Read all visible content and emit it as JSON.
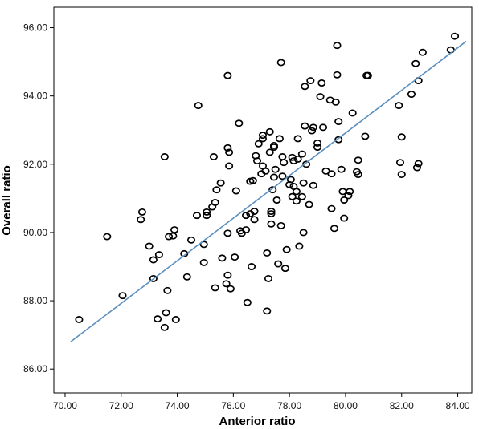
{
  "chart_data": {
    "type": "scatter",
    "title": "",
    "xlabel": "Anterior ratio",
    "ylabel": "Overall ratio",
    "xlim": [
      69.6,
      84.5
    ],
    "ylim": [
      85.3,
      96.6
    ],
    "xticks": [
      "70.00",
      "72.00",
      "74.00",
      "76.00",
      "78.00",
      "80.00",
      "82.00",
      "84.00"
    ],
    "yticks": [
      "86.00",
      "88.00",
      "90.00",
      "92.00",
      "94.00",
      "96.00"
    ],
    "grid": false,
    "marker_color": "#000000",
    "fit_line_color": "#5b8fbe",
    "fit_line": {
      "x": [
        70.2,
        84.3
      ],
      "y": [
        86.8,
        95.6
      ]
    },
    "points": [
      [
        70.5,
        87.45
      ],
      [
        71.5,
        89.88
      ],
      [
        72.05,
        88.15
      ],
      [
        72.75,
        90.6
      ],
      [
        72.7,
        90.38
      ],
      [
        73.0,
        89.6
      ],
      [
        73.15,
        89.2
      ],
      [
        73.15,
        88.65
      ],
      [
        73.3,
        87.47
      ],
      [
        73.35,
        89.35
      ],
      [
        73.55,
        92.22
      ],
      [
        73.55,
        87.22
      ],
      [
        73.6,
        87.65
      ],
      [
        73.65,
        88.3
      ],
      [
        73.7,
        89.88
      ],
      [
        73.85,
        89.9
      ],
      [
        73.9,
        90.08
      ],
      [
        73.95,
        87.45
      ],
      [
        74.25,
        89.38
      ],
      [
        74.35,
        88.7
      ],
      [
        74.5,
        89.78
      ],
      [
        74.7,
        90.5
      ],
      [
        74.75,
        93.72
      ],
      [
        74.95,
        89.12
      ],
      [
        74.95,
        89.65
      ],
      [
        75.05,
        90.6
      ],
      [
        75.05,
        90.5
      ],
      [
        75.25,
        90.75
      ],
      [
        75.3,
        92.22
      ],
      [
        75.35,
        88.38
      ],
      [
        75.35,
        90.88
      ],
      [
        75.4,
        91.25
      ],
      [
        75.55,
        91.45
      ],
      [
        75.6,
        89.25
      ],
      [
        75.75,
        88.5
      ],
      [
        75.8,
        88.75
      ],
      [
        75.8,
        89.98
      ],
      [
        75.8,
        92.48
      ],
      [
        75.85,
        92.35
      ],
      [
        75.8,
        94.6
      ],
      [
        75.85,
        91.95
      ],
      [
        75.9,
        88.35
      ],
      [
        76.05,
        89.28
      ],
      [
        76.1,
        91.22
      ],
      [
        76.2,
        93.2
      ],
      [
        76.25,
        90.05
      ],
      [
        76.3,
        89.98
      ],
      [
        76.45,
        90.5
      ],
      [
        76.45,
        90.08
      ],
      [
        76.5,
        87.95
      ],
      [
        76.6,
        91.5
      ],
      [
        76.6,
        90.55
      ],
      [
        76.65,
        89.0
      ],
      [
        76.7,
        91.52
      ],
      [
        76.75,
        90.62
      ],
      [
        76.75,
        90.38
      ],
      [
        76.8,
        92.25
      ],
      [
        76.85,
        92.1
      ],
      [
        76.9,
        92.6
      ],
      [
        77.0,
        91.72
      ],
      [
        77.05,
        92.75
      ],
      [
        77.05,
        92.85
      ],
      [
        77.05,
        91.95
      ],
      [
        77.15,
        91.8
      ],
      [
        77.2,
        89.4
      ],
      [
        77.25,
        88.65
      ],
      [
        77.2,
        87.7
      ],
      [
        77.3,
        92.35
      ],
      [
        77.3,
        92.95
      ],
      [
        77.35,
        90.55
      ],
      [
        77.35,
        90.62
      ],
      [
        77.35,
        90.25
      ],
      [
        77.4,
        91.25
      ],
      [
        77.45,
        92.55
      ],
      [
        77.45,
        92.5
      ],
      [
        77.45,
        91.62
      ],
      [
        77.5,
        91.85
      ],
      [
        77.55,
        90.95
      ],
      [
        77.6,
        89.08
      ],
      [
        77.65,
        92.75
      ],
      [
        77.7,
        94.98
      ],
      [
        77.7,
        90.2
      ],
      [
        77.75,
        91.65
      ],
      [
        77.75,
        92.22
      ],
      [
        77.8,
        92.05
      ],
      [
        77.85,
        88.95
      ],
      [
        77.9,
        89.5
      ],
      [
        78.0,
        91.4
      ],
      [
        78.05,
        91.55
      ],
      [
        78.1,
        91.05
      ],
      [
        78.1,
        92.2
      ],
      [
        78.15,
        92.1
      ],
      [
        78.15,
        91.35
      ],
      [
        78.25,
        91.2
      ],
      [
        78.25,
        90.92
      ],
      [
        78.3,
        92.75
      ],
      [
        78.3,
        92.15
      ],
      [
        78.35,
        89.6
      ],
      [
        78.45,
        92.3
      ],
      [
        78.45,
        91.05
      ],
      [
        78.5,
        90.0
      ],
      [
        78.5,
        91.45
      ],
      [
        78.55,
        93.12
      ],
      [
        78.55,
        94.28
      ],
      [
        78.6,
        92.0
      ],
      [
        78.7,
        90.82
      ],
      [
        78.75,
        94.45
      ],
      [
        78.8,
        92.98
      ],
      [
        78.85,
        91.38
      ],
      [
        78.85,
        93.08
      ],
      [
        79.0,
        92.62
      ],
      [
        79.0,
        92.5
      ],
      [
        79.1,
        93.98
      ],
      [
        79.15,
        94.38
      ],
      [
        79.2,
        93.08
      ],
      [
        79.3,
        91.8
      ],
      [
        79.45,
        93.88
      ],
      [
        79.5,
        90.7
      ],
      [
        79.5,
        91.72
      ],
      [
        79.6,
        90.12
      ],
      [
        79.65,
        93.82
      ],
      [
        79.7,
        95.48
      ],
      [
        79.7,
        94.62
      ],
      [
        79.75,
        92.72
      ],
      [
        79.75,
        93.25
      ],
      [
        79.85,
        91.85
      ],
      [
        79.9,
        91.2
      ],
      [
        79.95,
        90.42
      ],
      [
        79.95,
        90.95
      ],
      [
        80.1,
        91.08
      ],
      [
        80.15,
        91.2
      ],
      [
        80.25,
        93.5
      ],
      [
        80.4,
        91.78
      ],
      [
        80.45,
        91.7
      ],
      [
        80.45,
        92.12
      ],
      [
        80.7,
        92.82
      ],
      [
        80.75,
        94.6
      ],
      [
        80.8,
        94.6
      ],
      [
        81.9,
        93.72
      ],
      [
        81.95,
        92.05
      ],
      [
        82.0,
        91.7
      ],
      [
        82.0,
        92.8
      ],
      [
        82.35,
        94.05
      ],
      [
        82.5,
        94.95
      ],
      [
        82.55,
        91.9
      ],
      [
        82.6,
        92.02
      ],
      [
        82.6,
        94.45
      ],
      [
        82.75,
        95.28
      ],
      [
        83.75,
        95.35
      ],
      [
        83.9,
        95.75
      ]
    ]
  }
}
